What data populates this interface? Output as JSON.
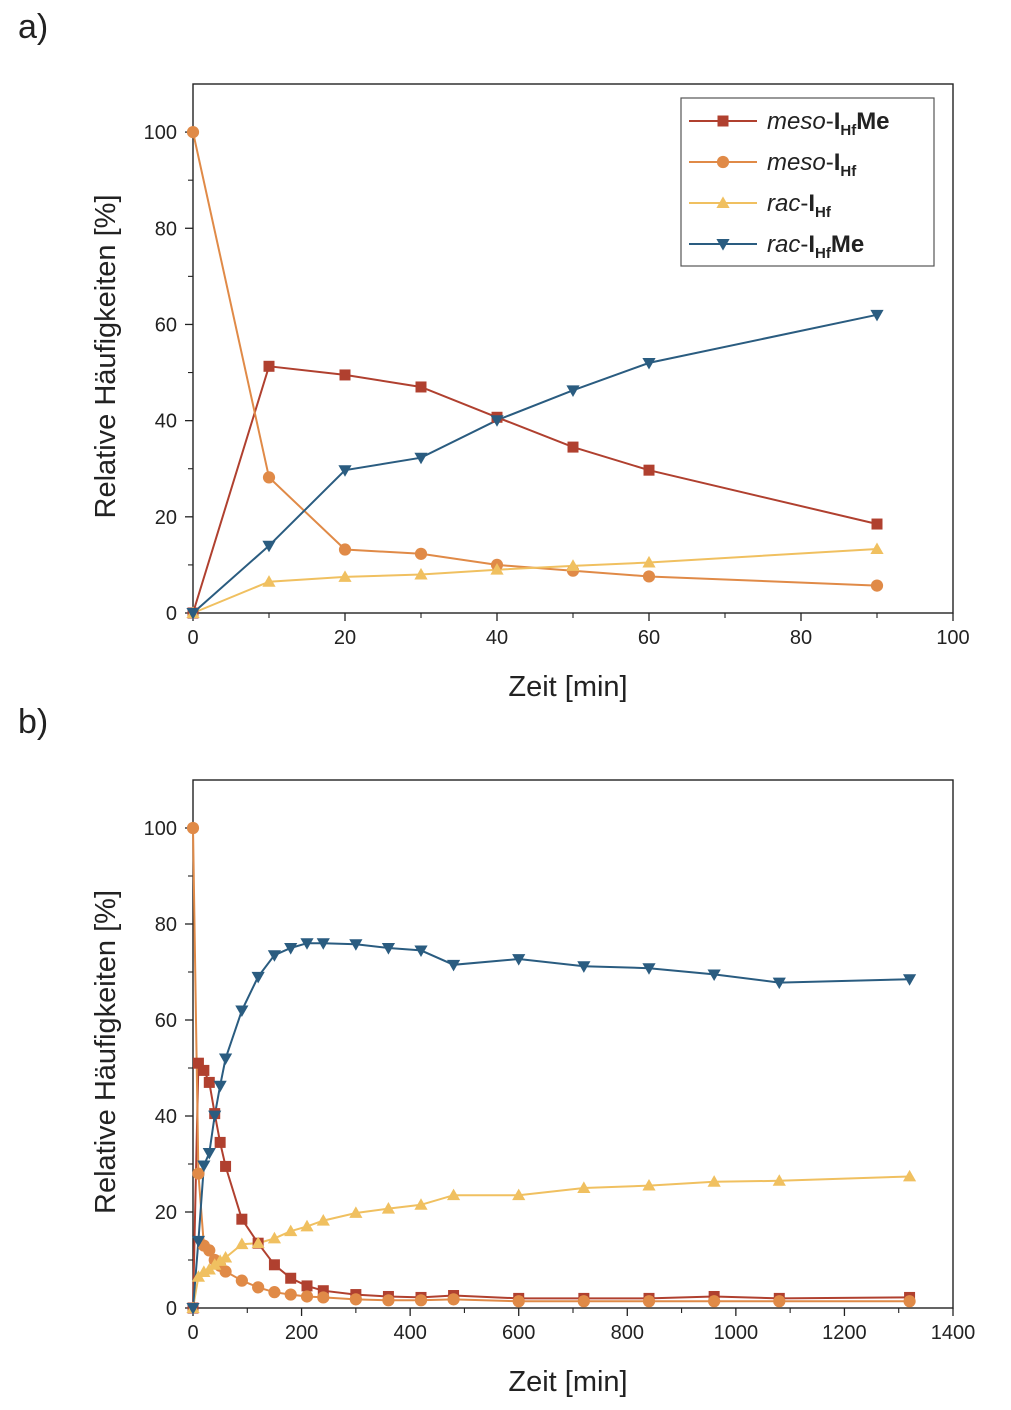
{
  "panels": {
    "a": "a)",
    "b": "b)"
  },
  "legend": [
    {
      "italic": "meso",
      "sep": "-",
      "main": "I",
      "sub": "Hf",
      "suffix": "Me"
    },
    {
      "italic": "meso",
      "sep": "-",
      "main": "I",
      "sub": "Hf",
      "suffix": ""
    },
    {
      "italic": "rac",
      "sep": "-",
      "main": "I",
      "sub": "Hf",
      "suffix": ""
    },
    {
      "italic": "rac",
      "sep": "-",
      "main": "I",
      "sub": "Hf",
      "suffix": "Me"
    }
  ],
  "chart_data": [
    {
      "type": "line",
      "panel": "a)",
      "xlabel": "Zeit [min]",
      "ylabel": "Relative Häufigkeiten [%]",
      "xlim": [
        0,
        100
      ],
      "ylim": [
        0,
        110
      ],
      "xticks": [
        0,
        20,
        40,
        60,
        80,
        100
      ],
      "yticks": [
        0,
        20,
        40,
        60,
        80,
        100
      ],
      "legend_position": "top-right",
      "x": [
        0,
        10,
        20,
        30,
        40,
        50,
        60,
        90
      ],
      "series": [
        {
          "name": "meso-IHfMe",
          "color": "#b0402f",
          "marker": "square",
          "values": [
            0,
            51.3,
            49.5,
            47,
            40.7,
            34.5,
            29.7,
            18.5
          ]
        },
        {
          "name": "meso-IHf",
          "color": "#e08a47",
          "marker": "circle",
          "values": [
            100,
            28.2,
            13.2,
            12.3,
            10,
            8.8,
            7.6,
            5.7
          ]
        },
        {
          "name": "rac-IHf",
          "color": "#f0c060",
          "marker": "triangle-up",
          "values": [
            0,
            6.5,
            7.5,
            8,
            9,
            9.8,
            10.5,
            13.3
          ]
        },
        {
          "name": "rac-IHfMe",
          "color": "#2a5c80",
          "marker": "triangle-down",
          "values": [
            0,
            14,
            29.7,
            32.3,
            40.1,
            46.3,
            52,
            62
          ]
        }
      ]
    },
    {
      "type": "line",
      "panel": "b)",
      "xlabel": "Zeit [min]",
      "ylabel": "Relative Häufigkeiten [%]",
      "xlim": [
        0,
        1400
      ],
      "ylim": [
        0,
        110
      ],
      "xticks": [
        0,
        200,
        400,
        600,
        800,
        1000,
        1200,
        1400
      ],
      "yticks": [
        0,
        20,
        40,
        60,
        80,
        100
      ],
      "x": [
        0,
        10,
        20,
        30,
        40,
        50,
        60,
        90,
        120,
        150,
        180,
        210,
        240,
        300,
        360,
        420,
        480,
        600,
        720,
        840,
        960,
        1080,
        1320
      ],
      "series": [
        {
          "name": "meso-IHfMe",
          "color": "#b0402f",
          "marker": "square",
          "values": [
            0,
            51,
            49.5,
            47,
            40.5,
            34.5,
            29.5,
            18.5,
            13.5,
            9,
            6.2,
            4.6,
            3.6,
            2.8,
            2.4,
            2.2,
            2.6,
            2,
            2,
            2,
            2.4,
            2,
            2.2
          ]
        },
        {
          "name": "meso-IHf",
          "color": "#e08a47",
          "marker": "circle",
          "values": [
            100,
            28,
            13,
            12,
            10,
            8.8,
            7.6,
            5.7,
            4.3,
            3.3,
            2.8,
            2.4,
            2.2,
            1.8,
            1.6,
            1.6,
            1.8,
            1.4,
            1.4,
            1.4,
            1.4,
            1.4,
            1.4
          ]
        },
        {
          "name": "rac-IHf",
          "color": "#f0c060",
          "marker": "triangle-up",
          "values": [
            0,
            6.5,
            7.5,
            8,
            9,
            9.8,
            10.5,
            13.3,
            13.5,
            14.5,
            16,
            17,
            18.2,
            19.8,
            20.7,
            21.5,
            23.5,
            23.5,
            25,
            25.5,
            26.3,
            26.5,
            27.4
          ]
        },
        {
          "name": "rac-IHfMe",
          "color": "#2a5c80",
          "marker": "triangle-down",
          "values": [
            0,
            14,
            29.7,
            32.3,
            40.1,
            46.3,
            52,
            62,
            69,
            73.5,
            75,
            76,
            76,
            75.8,
            75,
            74.5,
            71.5,
            72.7,
            71.2,
            70.8,
            69.5,
            67.8,
            68.5
          ]
        }
      ]
    }
  ]
}
